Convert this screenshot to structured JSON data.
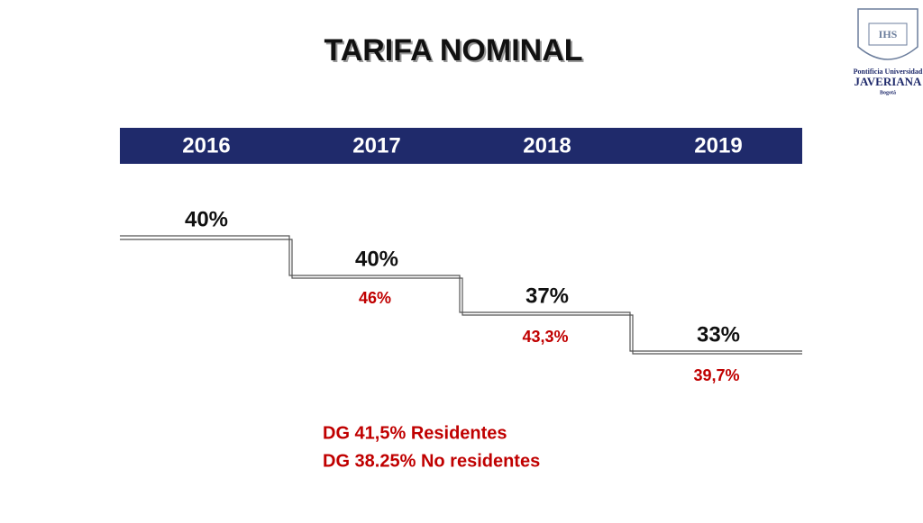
{
  "title": "TARIFA NOMINAL",
  "years": [
    "2016",
    "2017",
    "2018",
    "2019"
  ],
  "rates": [
    "40%",
    "40%",
    "37%",
    "33%"
  ],
  "surcharges": [
    null,
    "46%",
    "43,3%",
    "39,7%"
  ],
  "notes": [
    "DG 41,5% Residentes",
    "DG 38.25% No residentes"
  ],
  "logo": {
    "line1": "Pontificia Universidad",
    "line2": "JAVERIANA",
    "line3": "Bogotá"
  }
}
